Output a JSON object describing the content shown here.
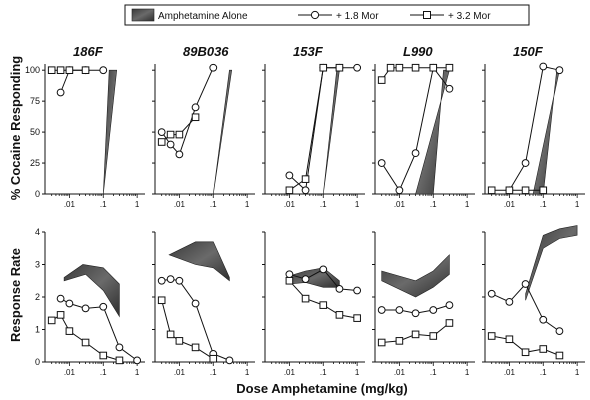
{
  "chart_data": {
    "type": "line",
    "xlabel": "Dose Amphetamine (mg/kg)",
    "x_scale": "log",
    "xlim": [
      0.0025,
      1.3
    ],
    "x_ticks": [
      {
        "value": 0.01,
        "label": ".01"
      },
      {
        "value": 0.1,
        "label": ".1"
      },
      {
        "value": 1,
        "label": "1"
      }
    ],
    "legend": {
      "placement": "top",
      "entries": [
        {
          "name": "Amphetamine Alone",
          "marker": "shaded-band"
        },
        {
          "name": "+ 1.8 Mor",
          "marker": "circle"
        },
        {
          "name": "+ 3.2 Mor",
          "marker": "square"
        }
      ]
    },
    "rows": [
      {
        "id": "cocaine",
        "ylabel": "% Cocaine Responding",
        "ylim": [
          0,
          105
        ],
        "y_ticks": [
          0,
          25,
          50,
          75,
          100
        ]
      },
      {
        "id": "rate",
        "ylabel": "Response Rate",
        "ylim": [
          0,
          4
        ],
        "y_ticks": [
          0,
          1,
          2,
          3,
          4
        ]
      }
    ],
    "subjects": [
      {
        "name": "186F",
        "cocaine": {
          "band_upper": [
            [
              0.1,
              0
            ],
            [
              0.25,
              100
            ]
          ],
          "band_lower": [
            [
              0.1,
              0
            ],
            [
              0.15,
              100
            ]
          ],
          "mor18": [
            [
              0.0055,
              82
            ],
            [
              0.01,
              100
            ],
            [
              0.03,
              100
            ],
            [
              0.1,
              100
            ]
          ],
          "mor32": [
            [
              0.003,
              100
            ],
            [
              0.0055,
              100
            ],
            [
              0.01,
              100
            ],
            [
              0.03,
              100
            ]
          ]
        },
        "rate": {
          "band_upper": [
            [
              0.007,
              2.6
            ],
            [
              0.025,
              3.0
            ],
            [
              0.1,
              2.9
            ],
            [
              0.3,
              2.4
            ]
          ],
          "band_lower": [
            [
              0.007,
              2.5
            ],
            [
              0.03,
              2.7
            ],
            [
              0.1,
              2.2
            ],
            [
              0.3,
              1.4
            ]
          ],
          "mor18": [
            [
              0.0055,
              1.95
            ],
            [
              0.01,
              1.8
            ],
            [
              0.03,
              1.65
            ],
            [
              0.1,
              1.7
            ],
            [
              0.3,
              0.45
            ],
            [
              1,
              0.05
            ]
          ],
          "mor32": [
            [
              0.003,
              1.28
            ],
            [
              0.0055,
              1.45
            ],
            [
              0.01,
              0.95
            ],
            [
              0.03,
              0.6
            ],
            [
              0.1,
              0.2
            ],
            [
              0.3,
              0.05
            ]
          ]
        }
      },
      {
        "name": "89B036",
        "cocaine": {
          "band_upper": [
            [
              0.1,
              0
            ],
            [
              0.35,
              100
            ]
          ],
          "band_lower": [
            [
              0.1,
              0
            ],
            [
              0.3,
              100
            ]
          ],
          "mor18": [
            [
              0.003,
              50
            ],
            [
              0.0055,
              40
            ],
            [
              0.01,
              32
            ],
            [
              0.03,
              70
            ],
            [
              0.1,
              102
            ]
          ],
          "mor32": [
            [
              0.003,
              42
            ],
            [
              0.0055,
              48
            ],
            [
              0.01,
              48
            ],
            [
              0.03,
              62
            ]
          ]
        },
        "rate": {
          "band_upper": [
            [
              0.005,
              3.3
            ],
            [
              0.03,
              3.7
            ],
            [
              0.1,
              3.7
            ],
            [
              0.3,
              2.6
            ]
          ],
          "band_lower": [
            [
              0.005,
              3.3
            ],
            [
              0.03,
              3.0
            ],
            [
              0.1,
              2.9
            ],
            [
              0.3,
              2.5
            ]
          ],
          "mor18": [
            [
              0.003,
              2.5
            ],
            [
              0.0055,
              2.55
            ],
            [
              0.01,
              2.5
            ],
            [
              0.03,
              1.8
            ],
            [
              0.1,
              0.25
            ],
            [
              0.3,
              0.05
            ]
          ],
          "mor32": [
            [
              0.003,
              1.9
            ],
            [
              0.0055,
              0.85
            ],
            [
              0.01,
              0.65
            ],
            [
              0.03,
              0.45
            ],
            [
              0.1,
              0.1
            ]
          ]
        }
      },
      {
        "name": "153F",
        "cocaine": {
          "band_upper": [
            [
              0.1,
              0
            ],
            [
              0.3,
              100
            ]
          ],
          "band_lower": [
            [
              0.1,
              0
            ],
            [
              0.25,
              100
            ]
          ],
          "mor18": [
            [
              0.01,
              15
            ],
            [
              0.03,
              3
            ],
            [
              0.1,
              102
            ],
            [
              0.3,
              102
            ],
            [
              1,
              102
            ]
          ],
          "mor32": [
            [
              0.01,
              3
            ],
            [
              0.03,
              12
            ],
            [
              0.1,
              102
            ],
            [
              0.3,
              102
            ]
          ]
        },
        "rate": {
          "band_upper": [
            [
              0.01,
              2.65
            ],
            [
              0.03,
              2.8
            ],
            [
              0.1,
              2.9
            ],
            [
              0.3,
              2.5
            ]
          ],
          "band_lower": [
            [
              0.01,
              2.4
            ],
            [
              0.03,
              2.45
            ],
            [
              0.1,
              2.3
            ],
            [
              0.3,
              2.3
            ]
          ],
          "mor18": [
            [
              0.01,
              2.7
            ],
            [
              0.03,
              2.55
            ],
            [
              0.1,
              2.85
            ],
            [
              0.3,
              2.25
            ],
            [
              1,
              2.2
            ]
          ],
          "mor32": [
            [
              0.01,
              2.5
            ],
            [
              0.03,
              1.95
            ],
            [
              0.1,
              1.75
            ],
            [
              0.3,
              1.45
            ],
            [
              1,
              1.35
            ]
          ]
        }
      },
      {
        "name": "L990",
        "cocaine": {
          "band_upper": [
            [
              0.03,
              0
            ],
            [
              0.3,
              100
            ]
          ],
          "band_lower": [
            [
              0.1,
              0
            ],
            [
              0.2,
              100
            ]
          ],
          "mor18": [
            [
              0.003,
              25
            ],
            [
              0.01,
              3
            ],
            [
              0.03,
              33
            ],
            [
              0.1,
              102
            ],
            [
              0.3,
              85
            ]
          ],
          "mor32": [
            [
              0.003,
              92
            ],
            [
              0.0055,
              102
            ],
            [
              0.01,
              102
            ],
            [
              0.03,
              102
            ],
            [
              0.1,
              102
            ],
            [
              0.3,
              102
            ]
          ]
        },
        "rate": {
          "band_upper": [
            [
              0.003,
              2.8
            ],
            [
              0.03,
              2.5
            ],
            [
              0.1,
              2.8
            ],
            [
              0.3,
              3.3
            ]
          ],
          "band_lower": [
            [
              0.003,
              2.5
            ],
            [
              0.03,
              2.0
            ],
            [
              0.1,
              2.3
            ],
            [
              0.3,
              2.7
            ]
          ],
          "mor18": [
            [
              0.003,
              1.6
            ],
            [
              0.01,
              1.6
            ],
            [
              0.03,
              1.5
            ],
            [
              0.1,
              1.6
            ],
            [
              0.3,
              1.75
            ]
          ],
          "mor32": [
            [
              0.003,
              0.6
            ],
            [
              0.01,
              0.65
            ],
            [
              0.03,
              0.85
            ],
            [
              0.1,
              0.8
            ],
            [
              0.3,
              1.2
            ]
          ]
        }
      },
      {
        "name": "150F",
        "cocaine": {
          "band_upper": [
            [
              0.05,
              0
            ],
            [
              0.3,
              100
            ]
          ],
          "band_lower": [
            [
              0.1,
              0
            ],
            [
              0.25,
              100
            ]
          ],
          "mor18": [
            [
              0.01,
              3
            ],
            [
              0.03,
              25
            ],
            [
              0.1,
              103
            ],
            [
              0.3,
              100
            ]
          ],
          "mor32": [
            [
              0.003,
              3
            ],
            [
              0.01,
              3
            ],
            [
              0.03,
              3
            ],
            [
              0.1,
              3
            ]
          ]
        },
        "rate": {
          "band_upper": [
            [
              0.03,
              2.1
            ],
            [
              0.1,
              3.9
            ],
            [
              0.3,
              4.1
            ],
            [
              1,
              4.2
            ]
          ],
          "band_lower": [
            [
              0.03,
              1.9
            ],
            [
              0.1,
              3.5
            ],
            [
              0.3,
              3.8
            ],
            [
              1,
              3.9
            ]
          ],
          "mor18": [
            [
              0.003,
              2.1
            ],
            [
              0.01,
              1.85
            ],
            [
              0.03,
              2.4
            ],
            [
              0.1,
              1.3
            ],
            [
              0.3,
              0.95
            ]
          ],
          "mor32": [
            [
              0.003,
              0.8
            ],
            [
              0.01,
              0.7
            ],
            [
              0.03,
              0.3
            ],
            [
              0.1,
              0.4
            ],
            [
              0.3,
              0.2
            ]
          ]
        }
      }
    ]
  }
}
